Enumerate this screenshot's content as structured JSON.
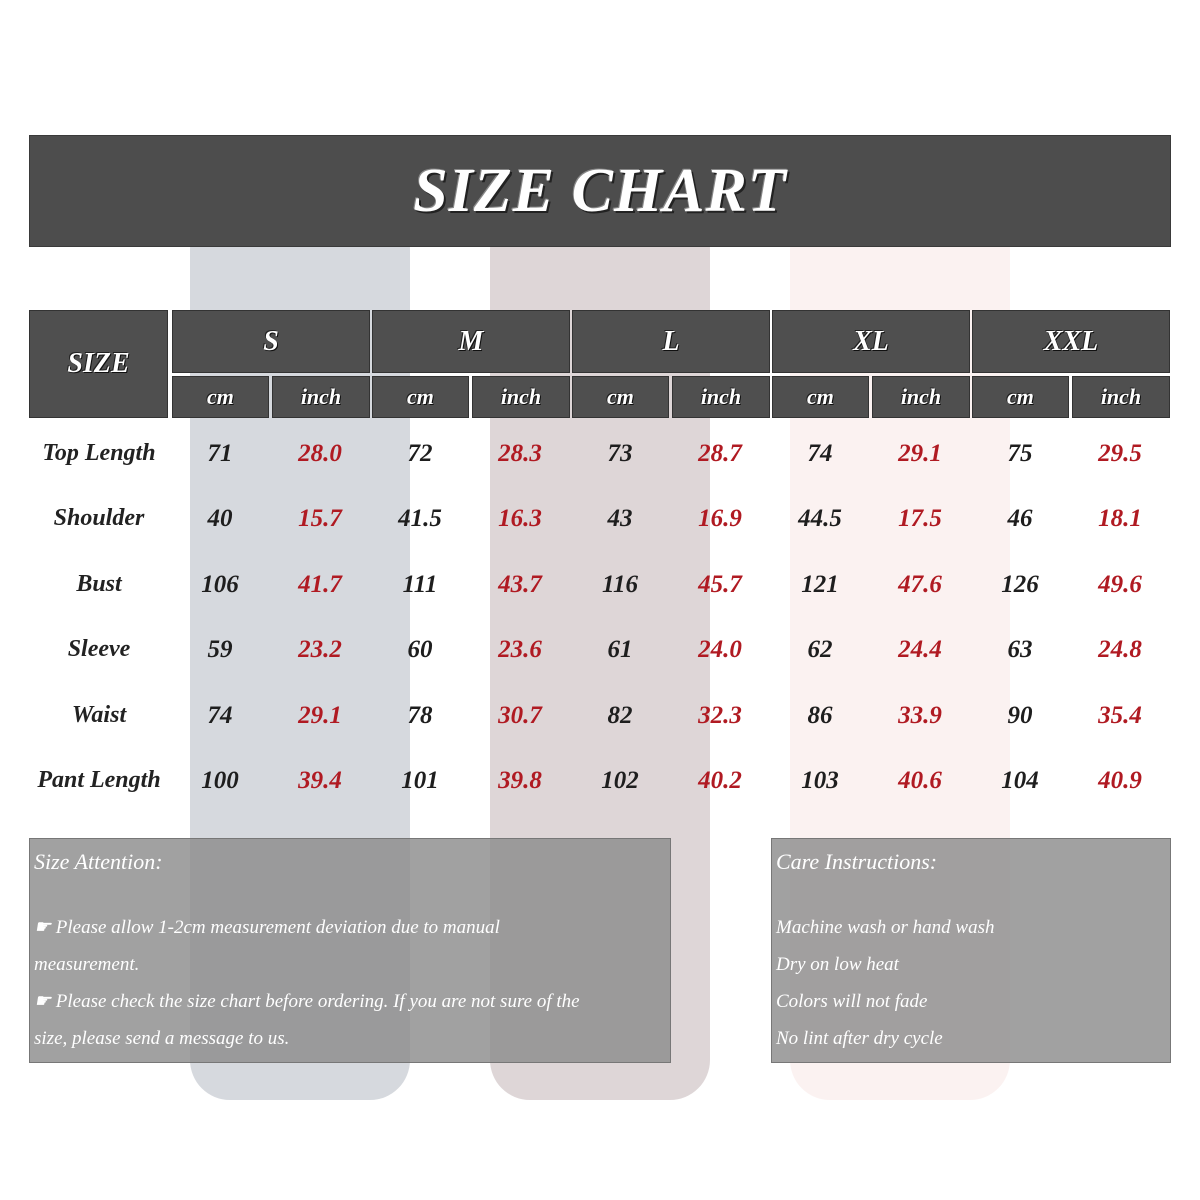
{
  "title": "SIZE CHART",
  "header": {
    "size_label": "SIZE",
    "sizes": [
      "S",
      "M",
      "L",
      "XL",
      "XXL"
    ],
    "unit_cm": "cm",
    "unit_inch": "inch"
  },
  "colors": {
    "header_bg": "#4f4f4f",
    "inch_text": "#b01a22",
    "cm_text": "#1e1e1e",
    "note_bg": "#8c8c8c"
  },
  "rows": [
    {
      "label": "Top Length",
      "values": [
        "71",
        "28.0",
        "72",
        "28.3",
        "73",
        "28.7",
        "74",
        "29.1",
        "75",
        "29.5"
      ]
    },
    {
      "label": "Shoulder",
      "values": [
        "40",
        "15.7",
        "41.5",
        "16.3",
        "43",
        "16.9",
        "44.5",
        "17.5",
        "46",
        "18.1"
      ]
    },
    {
      "label": "Bust",
      "values": [
        "106",
        "41.7",
        "111",
        "43.7",
        "116",
        "45.7",
        "121",
        "47.6",
        "126",
        "49.6"
      ]
    },
    {
      "label": "Sleeve",
      "values": [
        "59",
        "23.2",
        "60",
        "23.6",
        "61",
        "24.0",
        "62",
        "24.4",
        "63",
        "24.8"
      ]
    },
    {
      "label": "Waist",
      "values": [
        "74",
        "29.1",
        "78",
        "30.7",
        "82",
        "32.3",
        "86",
        "33.9",
        "90",
        "35.4"
      ]
    },
    {
      "label": "Pant Length",
      "values": [
        "100",
        "39.4",
        "101",
        "39.8",
        "102",
        "40.2",
        "103",
        "40.6",
        "104",
        "40.9"
      ]
    }
  ],
  "size_attention": {
    "title": "Size Attention:",
    "lines": [
      "☛ Please allow 1-2cm measurement deviation due to manual",
      "measurement.",
      "☛ Please check the size chart before ordering. If you are not sure of the",
      "size, please send a message to us."
    ]
  },
  "care_instructions": {
    "title": "Care Instructions:",
    "lines": [
      "Machine wash or hand wash",
      "Dry on low heat",
      "Colors will not fade",
      "No lint after dry cycle"
    ]
  }
}
